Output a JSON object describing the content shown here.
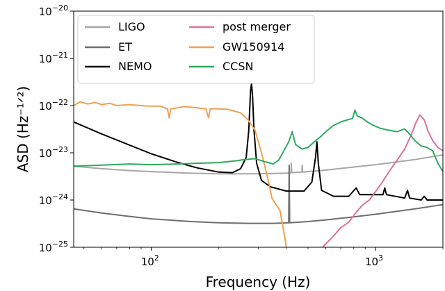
{
  "chart_data": {
    "type": "line",
    "xlabel": "Frequency (Hz)",
    "ylabel": "ASD (Hz⁻¹ᐟ²)",
    "xscale": "log",
    "yscale": "log",
    "xlim": [
      45,
      2000
    ],
    "ylim": [
      1e-25,
      1e-20
    ],
    "grid": false,
    "legend_position": "top-left",
    "x_ticks": [
      {
        "value": 100,
        "base": "10",
        "exp": "2"
      },
      {
        "value": 1000,
        "base": "10",
        "exp": "3"
      }
    ],
    "y_ticks": [
      {
        "value": 1e-25,
        "base": "10",
        "exp": "−25"
      },
      {
        "value": 1e-24,
        "base": "10",
        "exp": "−24"
      },
      {
        "value": 1e-23,
        "base": "10",
        "exp": "−23"
      },
      {
        "value": 1e-22,
        "base": "10",
        "exp": "−22"
      },
      {
        "value": 1e-21,
        "base": "10",
        "exp": "−21"
      },
      {
        "value": 1e-20,
        "base": "10",
        "exp": "−20"
      }
    ],
    "series": [
      {
        "name": "LIGO",
        "color": "#a6a6a6",
        "points": [
          [
            45,
            5.2e-24
          ],
          [
            60,
            4.6e-24
          ],
          [
            80,
            4.2e-24
          ],
          [
            100,
            4e-24
          ],
          [
            150,
            3.7e-24
          ],
          [
            200,
            3.6e-24
          ],
          [
            300,
            3.6e-24
          ],
          [
            400,
            3.7e-24
          ],
          [
            420,
            3.8e-24
          ],
          [
            421,
            6e-24
          ],
          [
            423,
            3.8e-24
          ],
          [
            470,
            3.9e-24
          ],
          [
            471,
            5.5e-24
          ],
          [
            473,
            3.9e-24
          ],
          [
            600,
            4.3e-24
          ],
          [
            800,
            5e-24
          ],
          [
            1000,
            5.6e-24
          ],
          [
            1500,
            7.2e-24
          ],
          [
            2000,
            9e-24
          ]
        ]
      },
      {
        "name": "ET",
        "color": "#6e6e6e",
        "points": [
          [
            45,
            6.5e-25
          ],
          [
            60,
            5.3e-25
          ],
          [
            80,
            4.5e-25
          ],
          [
            100,
            4e-25
          ],
          [
            150,
            3.5e-25
          ],
          [
            200,
            3.3e-25
          ],
          [
            270,
            3.2e-25
          ],
          [
            350,
            3.2e-25
          ],
          [
            410,
            3.3e-25
          ],
          [
            412,
            5.5e-24
          ],
          [
            414,
            3.3e-25
          ],
          [
            500,
            3.5e-25
          ],
          [
            600,
            3.8e-25
          ],
          [
            800,
            4.4e-25
          ],
          [
            1000,
            5e-25
          ],
          [
            1500,
            6.5e-25
          ],
          [
            2000,
            8e-25
          ]
        ]
      },
      {
        "name": "NEMO",
        "color": "#000000",
        "points": [
          [
            45,
            4.5e-23
          ],
          [
            60,
            2.5e-23
          ],
          [
            80,
            1.45e-23
          ],
          [
            100,
            9.5e-24
          ],
          [
            130,
            6.3e-24
          ],
          [
            160,
            4.8e-24
          ],
          [
            200,
            3.9e-24
          ],
          [
            230,
            3.8e-24
          ],
          [
            250,
            4.6e-24
          ],
          [
            265,
            8e-24
          ],
          [
            272,
            3e-23
          ],
          [
            277,
            2e-22
          ],
          [
            280,
            3e-22
          ],
          [
            283,
            1.5e-22
          ],
          [
            287,
            3e-23
          ],
          [
            295,
            6e-24
          ],
          [
            310,
            2.6e-24
          ],
          [
            340,
            1.9e-24
          ],
          [
            400,
            1.55e-24
          ],
          [
            480,
            1.55e-24
          ],
          [
            520,
            2.4e-24
          ],
          [
            540,
            8e-24
          ],
          [
            548,
            1.7e-23
          ],
          [
            556,
            6e-24
          ],
          [
            575,
            1.6e-24
          ],
          [
            650,
            1.2e-24
          ],
          [
            760,
            1.2e-24
          ],
          [
            820,
            1.8e-24
          ],
          [
            850,
            1.3e-24
          ],
          [
            1000,
            1.3e-24
          ],
          [
            1080,
            1.3e-24
          ],
          [
            1100,
            1.8e-24
          ],
          [
            1120,
            1.3e-24
          ],
          [
            1350,
            1.1e-24
          ],
          [
            1390,
            1.6e-24
          ],
          [
            1420,
            1.1e-24
          ],
          [
            1600,
            1e-24
          ],
          [
            1650,
            1.2e-24
          ],
          [
            1700,
            1e-24
          ],
          [
            2000,
            1e-24
          ]
        ]
      },
      {
        "name": "post merger",
        "color": "#e06f9e",
        "points": [
          [
            580,
            1e-25
          ],
          [
            640,
            1.6e-25
          ],
          [
            700,
            2.6e-25
          ],
          [
            760,
            3.4e-25
          ],
          [
            820,
            5.5e-25
          ],
          [
            880,
            8e-25
          ],
          [
            940,
            1e-24
          ],
          [
            1000,
            1.5e-24
          ],
          [
            1080,
            2.5e-24
          ],
          [
            1150,
            4e-24
          ],
          [
            1250,
            7e-24
          ],
          [
            1350,
            1.2e-23
          ],
          [
            1450,
            2.5e-23
          ],
          [
            1520,
            4.5e-23
          ],
          [
            1580,
            6.3e-23
          ],
          [
            1650,
            5e-23
          ],
          [
            1720,
            2.8e-23
          ],
          [
            1800,
            1.8e-23
          ],
          [
            1900,
            1.3e-23
          ],
          [
            2000,
            1.1e-23
          ]
        ]
      },
      {
        "name": "GW150914",
        "color": "#f0a050",
        "points": [
          [
            45,
            1e-22
          ],
          [
            48,
            1.2e-22
          ],
          [
            52,
            1.08e-22
          ],
          [
            56,
            1.16e-22
          ],
          [
            60,
            1.05e-22
          ],
          [
            65,
            1.12e-22
          ],
          [
            70,
            1e-22
          ],
          [
            80,
            1.05e-22
          ],
          [
            95,
            9.8e-23
          ],
          [
            110,
            9.7e-23
          ],
          [
            118,
            8.5e-23
          ],
          [
            120,
            5.5e-23
          ],
          [
            122,
            8.5e-23
          ],
          [
            140,
            9.5e-23
          ],
          [
            160,
            9e-23
          ],
          [
            175,
            8.5e-23
          ],
          [
            180,
            5.5e-23
          ],
          [
            183,
            8.5e-23
          ],
          [
            200,
            8.5e-23
          ],
          [
            220,
            8.3e-23
          ],
          [
            250,
            7e-23
          ],
          [
            270,
            5e-23
          ],
          [
            290,
            3e-23
          ],
          [
            310,
            1e-23
          ],
          [
            330,
            3e-24
          ],
          [
            345,
            1.1e-24
          ],
          [
            360,
            8e-25
          ],
          [
            375,
            6e-25
          ],
          [
            385,
            3e-25
          ],
          [
            395,
            1.5e-25
          ],
          [
            400,
            1e-25
          ]
        ]
      },
      {
        "name": "CCSN",
        "color": "#2eaa5e",
        "points": [
          [
            45,
            5.2e-24
          ],
          [
            60,
            5.5e-24
          ],
          [
            80,
            5.8e-24
          ],
          [
            100,
            5.6e-24
          ],
          [
            130,
            5.8e-24
          ],
          [
            160,
            6e-24
          ],
          [
            200,
            6.2e-24
          ],
          [
            240,
            6.8e-24
          ],
          [
            260,
            7.2e-24
          ],
          [
            290,
            7.5e-24
          ],
          [
            320,
            6.5e-24
          ],
          [
            350,
            5.8e-24
          ],
          [
            370,
            7e-24
          ],
          [
            390,
            1.1e-23
          ],
          [
            410,
            1.7e-23
          ],
          [
            425,
            2.8e-23
          ],
          [
            440,
            1.5e-23
          ],
          [
            470,
            1.2e-23
          ],
          [
            500,
            1.3e-23
          ],
          [
            540,
            1.8e-23
          ],
          [
            570,
            2.2e-23
          ],
          [
            600,
            2.8e-23
          ],
          [
            650,
            3.8e-23
          ],
          [
            700,
            4.5e-23
          ],
          [
            750,
            5e-23
          ],
          [
            790,
            5.3e-23
          ],
          [
            810,
            8e-23
          ],
          [
            830,
            6e-23
          ],
          [
            870,
            5.5e-23
          ],
          [
            920,
            4.5e-23
          ],
          [
            980,
            3.8e-23
          ],
          [
            1050,
            3.3e-23
          ],
          [
            1150,
            3e-23
          ],
          [
            1250,
            2.8e-23
          ],
          [
            1350,
            3.2e-23
          ],
          [
            1430,
            2.4e-23
          ],
          [
            1500,
            1.8e-23
          ],
          [
            1600,
            1.4e-23
          ],
          [
            1700,
            1.3e-23
          ],
          [
            1800,
            1.1e-23
          ],
          [
            1900,
            6e-24
          ],
          [
            2000,
            4e-24
          ]
        ]
      }
    ]
  }
}
